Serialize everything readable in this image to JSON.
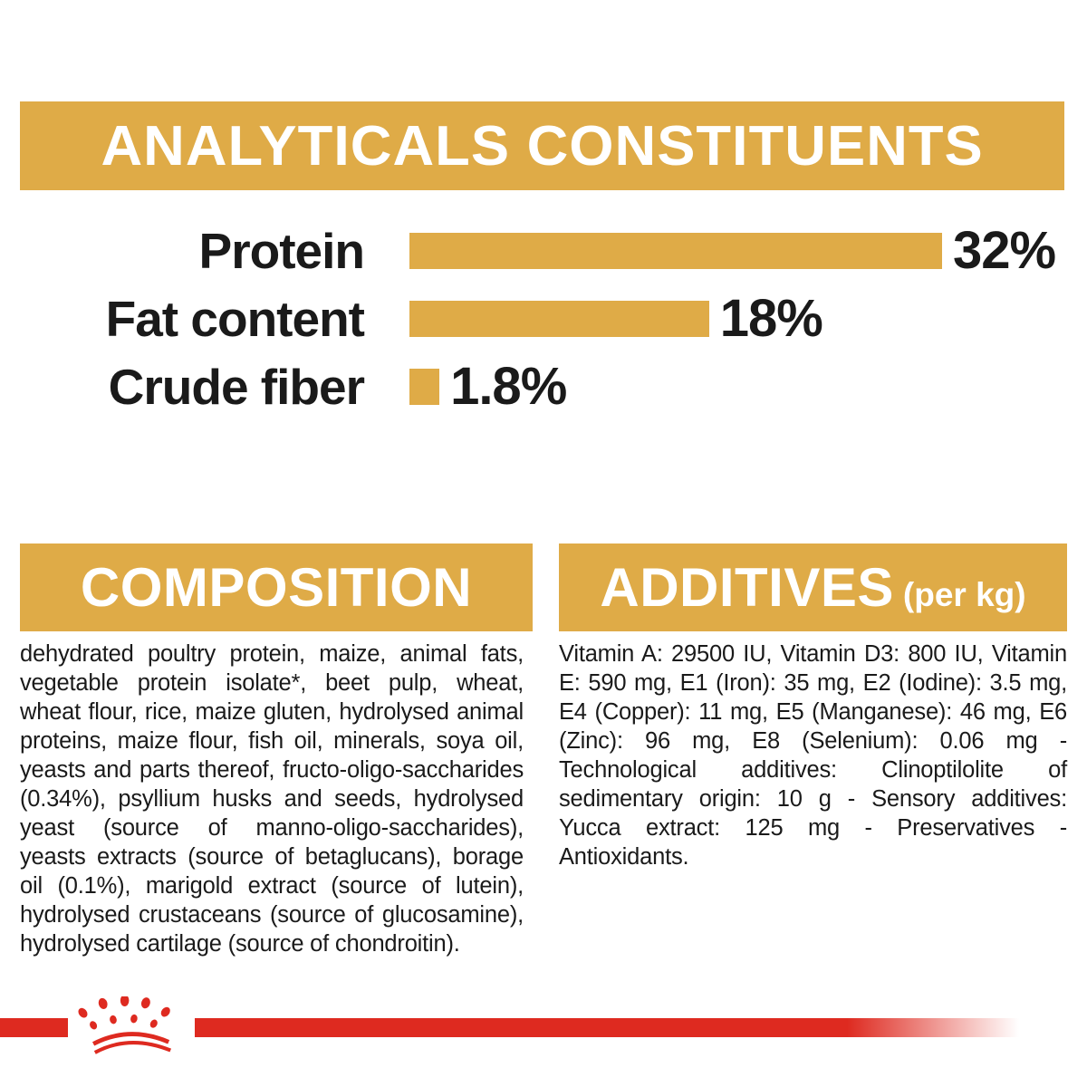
{
  "colors": {
    "gold": "#DFAB47",
    "red": "#DE2A20",
    "text_dark": "#1A1A1A",
    "banner_text": "#FFFFFF",
    "background": "#FFFFFF"
  },
  "analyticals": {
    "title": "ANALYTICALS CONSTITUENTS"
  },
  "chart_data": {
    "type": "bar",
    "orientation": "horizontal",
    "title": "ANALYTICALS CONSTITUENTS",
    "categories": [
      "Protein",
      "Fat content",
      "Crude fiber"
    ],
    "values": [
      32,
      18,
      1.8
    ],
    "value_labels": [
      "32%",
      "18%",
      "1.8%"
    ],
    "xlabel": "",
    "ylabel": "",
    "xlim": [
      0,
      32
    ],
    "grid": false,
    "legend": false,
    "bar_color": "#DFAB47"
  },
  "composition": {
    "title": "COMPOSITION",
    "body": "dehydrated poultry protein, maize, animal fats, vegetable protein isolate*, beet pulp, wheat, wheat flour, rice, maize gluten, hydrolysed animal proteins, maize flour, fish oil, minerals, soya oil, yeasts and parts thereof, fructo-oligo-saccharides (0.34%), psyllium husks and seeds, hydrolysed yeast (source of manno-oligo-saccharides), yeasts extracts (source of betaglucans), borage oil (0.1%), marigold extract (source of lutein), hydrolysed crustaceans (source of glucosamine), hydrolysed cartilage (source of chondroitin)."
  },
  "additives": {
    "title": "ADDITIVES",
    "unit_note": "(per kg)",
    "body": "Vitamin A: 29500 IU, Vitamin D3: 800 IU, Vitamin E: 590 mg, E1 (Iron): 35 mg, E2 (Iodine): 3.5 mg, E4 (Copper): 11 mg, E5 (Manganese): 46 mg, E6 (Zinc): 96 mg, E8 (Selenium): 0.06 mg - Technological additives: Clinoptilolite of sedimentary origin: 10 g - Sensory additives: Yucca extract: 125 mg - Preservatives - Antioxidants."
  },
  "footer": {
    "logo_icon": "royal-canin-crown-icon"
  }
}
